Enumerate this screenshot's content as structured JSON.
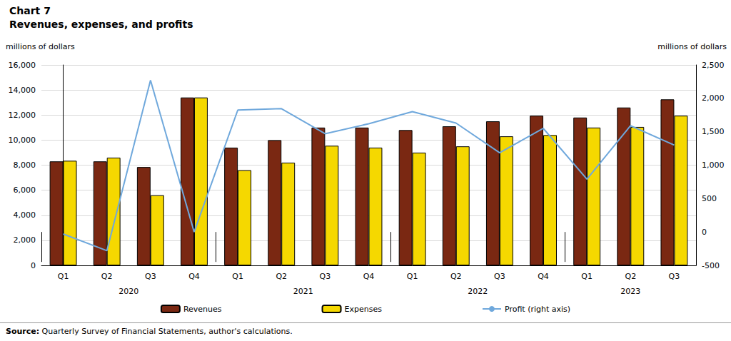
{
  "chart_data": {
    "type": "bar",
    "title": "Chart 7",
    "subtitle": "Revenues, expenses, and profits",
    "y_label": "millions of dollars",
    "y2_label": "millions of dollars",
    "source": "Source: Quarterly Survey of Financial Statements, author's calculations.",
    "categories": [
      "Q1",
      "Q2",
      "Q3",
      "Q4",
      "Q1",
      "Q2",
      "Q3",
      "Q4",
      "Q1",
      "Q2",
      "Q3",
      "Q4",
      "Q1",
      "Q2",
      "Q3"
    ],
    "category_groups": [
      "2020",
      "2020",
      "2020",
      "2020",
      "2021",
      "2021",
      "2021",
      "2021",
      "2022",
      "2022",
      "2022",
      "2022",
      "2023",
      "2023",
      "2023"
    ],
    "series": [
      {
        "name": "Revenues",
        "type": "bar",
        "color": "#7a2812",
        "values": [
          8300,
          8300,
          7850,
          13400,
          9400,
          10000,
          11000,
          11000,
          10800,
          11100,
          11500,
          11950,
          11800,
          12600,
          13250
        ]
      },
      {
        "name": "Expenses",
        "type": "bar",
        "color": "#f5d800",
        "values": [
          8350,
          8600,
          5600,
          13400,
          7600,
          8200,
          9550,
          9400,
          9000,
          9500,
          10300,
          10400,
          11000,
          11050,
          11950
        ]
      },
      {
        "name": "Profit (right axis)",
        "type": "line",
        "color": "#6fa8dc",
        "axis": "y2",
        "values": [
          -30,
          -280,
          2270,
          0,
          1825,
          1845,
          1470,
          1620,
          1800,
          1630,
          1185,
          1550,
          790,
          1590,
          1300
        ]
      }
    ],
    "ylim": [
      0,
      16000
    ],
    "yticks": [
      0,
      {
        "value": 2000,
        "label": "2,000"
      },
      {
        "value": 4000,
        "label": "4,000"
      },
      {
        "value": 6000,
        "label": "6,000"
      },
      {
        "value": 8000,
        "label": "8,000"
      },
      {
        "value": 10000,
        "label": "10,000"
      },
      {
        "value": 12000,
        "label": "12,000"
      },
      {
        "value": 14000,
        "label": "14,000"
      },
      {
        "value": 16000,
        "label": "16,000"
      }
    ],
    "y2lim": [
      -500,
      2500
    ],
    "y2ticks": [
      -500,
      0,
      500,
      {
        "value": 1000,
        "label": "1,000"
      },
      {
        "value": 1500,
        "label": "1,500"
      },
      {
        "value": 2000,
        "label": "2,000"
      },
      {
        "value": 2500,
        "label": "2,500"
      }
    ],
    "grid": true,
    "legend": "bottom"
  }
}
